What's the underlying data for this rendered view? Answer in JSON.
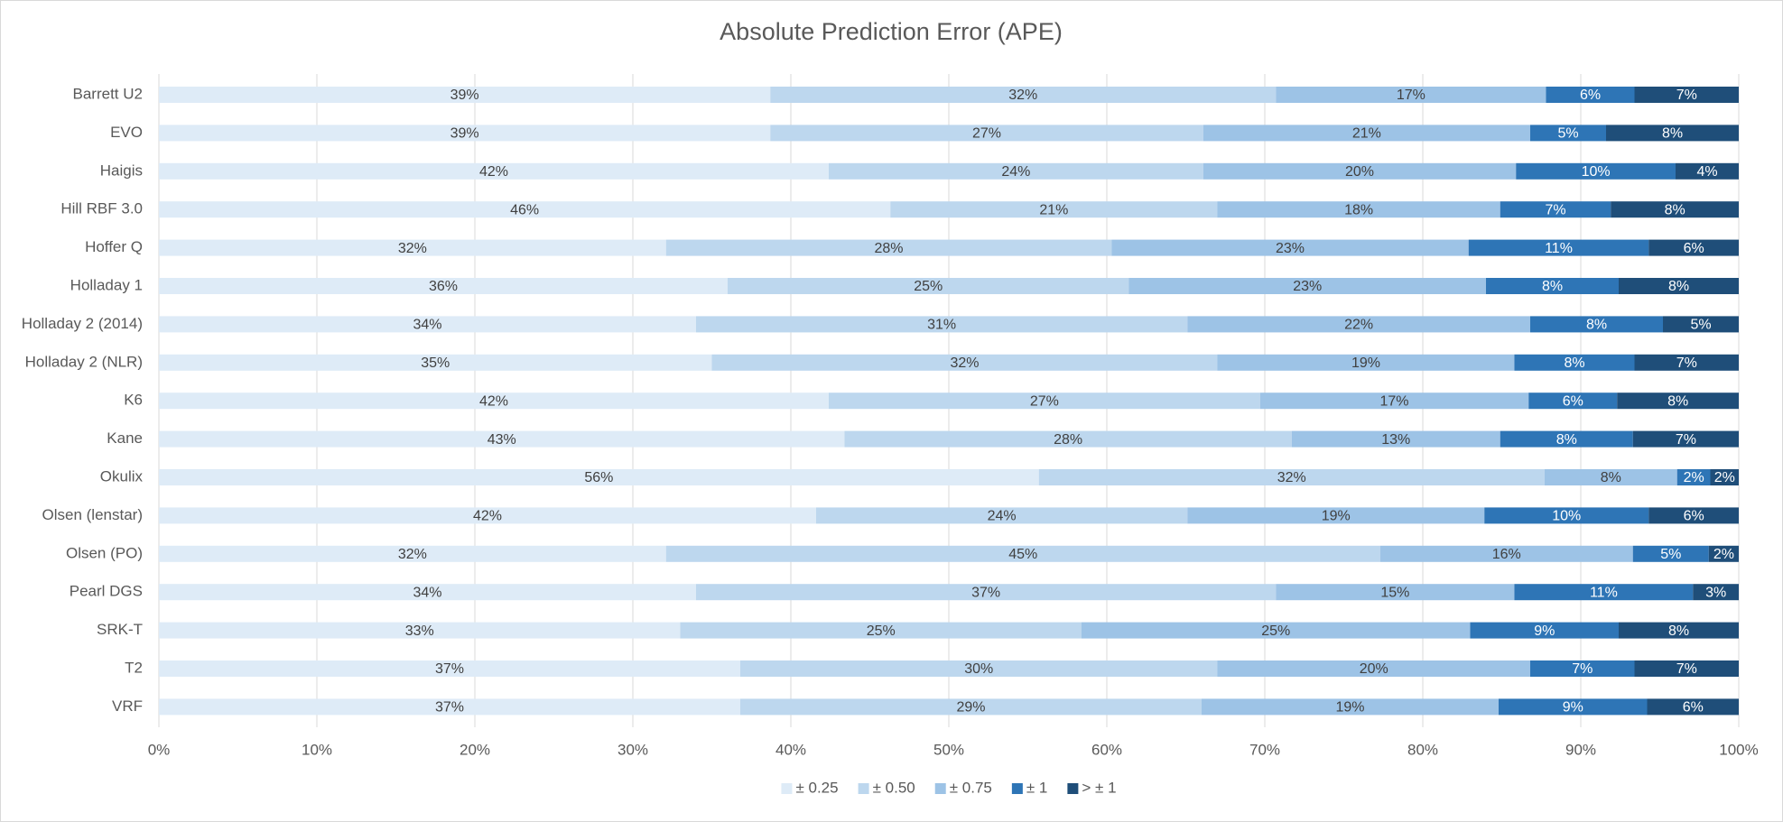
{
  "chart_data": {
    "type": "stacked-bar-horizontal",
    "title": "Absolute Prediction Error (APE)",
    "categories": [
      "Barrett U2",
      "EVO",
      "Haigis",
      "Hill RBF 3.0",
      "Hoffer Q",
      "Holladay 1",
      "Holladay 2 (2014)",
      "Holladay 2 (NLR)",
      "K6",
      "Kane",
      "Okulix",
      "Olsen (lenstar)",
      "Olsen (PO)",
      "Pearl DGS",
      "SRK-T",
      "T2",
      "VRF"
    ],
    "series": [
      {
        "name": "± 0.25",
        "color": "#deebf7",
        "values": [
          38.7,
          38.7,
          42.4,
          46.3,
          32.1,
          36.0,
          34.0,
          35.0,
          42.4,
          43.4,
          55.7,
          41.6,
          32.1,
          34.0,
          33.0,
          36.8,
          36.8
        ],
        "value_labels": [
          "39%",
          "39%",
          "42%",
          "46%",
          "32%",
          "36%",
          "34%",
          "35%",
          "42%",
          "43%",
          "56%",
          "42%",
          "32%",
          "34%",
          "33%",
          "37%",
          "37%"
        ]
      },
      {
        "name": "± 0.50",
        "color": "#bdd7ee",
        "values": [
          32.0,
          27.4,
          23.7,
          20.7,
          28.2,
          25.4,
          31.1,
          32.0,
          27.3,
          28.3,
          32.0,
          23.5,
          45.2,
          36.7,
          25.4,
          30.2,
          29.2
        ],
        "value_labels": [
          "32%",
          "27%",
          "24%",
          "21%",
          "28%",
          "25%",
          "31%",
          "32%",
          "27%",
          "28%",
          "32%",
          "24%",
          "45%",
          "37%",
          "25%",
          "30%",
          "29%"
        ]
      },
      {
        "name": "± 0.75",
        "color": "#9dc3e6",
        "values": [
          17.1,
          20.7,
          19.8,
          17.9,
          22.6,
          22.6,
          21.7,
          18.8,
          17.0,
          13.2,
          8.4,
          18.8,
          16.0,
          15.1,
          24.6,
          19.8,
          18.8
        ],
        "value_labels": [
          "17%",
          "21%",
          "20%",
          "18%",
          "23%",
          "23%",
          "22%",
          "19%",
          "17%",
          "13%",
          "8%",
          "19%",
          "16%",
          "15%",
          "25%",
          "20%",
          "19%"
        ]
      },
      {
        "name": "± 1",
        "color": "#2e75b6",
        "values": [
          5.6,
          4.8,
          10.1,
          7.0,
          11.4,
          8.4,
          8.4,
          7.6,
          5.6,
          8.4,
          2.1,
          10.4,
          4.8,
          11.3,
          9.4,
          6.6,
          9.4
        ],
        "value_labels": [
          "6%",
          "5%",
          "10%",
          "7%",
          "11%",
          "8%",
          "8%",
          "8%",
          "6%",
          "8%",
          "2%",
          "10%",
          "5%",
          "11%",
          "9%",
          "7%",
          "9%"
        ]
      },
      {
        "name": "> ± 1",
        "color": "#1f4e79",
        "values": [
          6.6,
          8.4,
          4.0,
          8.1,
          5.7,
          7.6,
          4.8,
          6.6,
          7.7,
          6.7,
          1.8,
          5.7,
          1.9,
          2.9,
          7.6,
          6.6,
          5.8
        ],
        "value_labels": [
          "7%",
          "8%",
          "4%",
          "8%",
          "6%",
          "8%",
          "5%",
          "7%",
          "8%",
          "7%",
          "2%",
          "6%",
          "2%",
          "3%",
          "8%",
          "7%",
          "6%"
        ]
      }
    ],
    "xlim": [
      0,
      100
    ],
    "xticks": [
      {
        "value": 0,
        "label": "0%"
      },
      {
        "value": 10,
        "label": "10%"
      },
      {
        "value": 20,
        "label": "20%"
      },
      {
        "value": 30,
        "label": "30%"
      },
      {
        "value": 40,
        "label": "40%"
      },
      {
        "value": 50,
        "label": "50%"
      },
      {
        "value": 60,
        "label": "60%"
      },
      {
        "value": 70,
        "label": "70%"
      },
      {
        "value": 80,
        "label": "80%"
      },
      {
        "value": 90,
        "label": "90%"
      },
      {
        "value": 100,
        "label": "100%"
      }
    ],
    "grid": true,
    "legend": "bottom"
  }
}
